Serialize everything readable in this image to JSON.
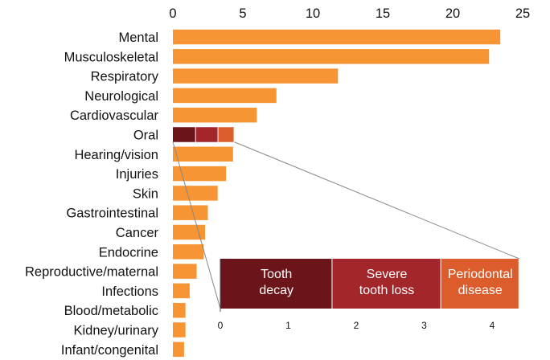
{
  "chart_data": [
    {
      "type": "bar",
      "orientation": "horizontal",
      "x_axis_position": "top",
      "xlim": [
        0,
        25
      ],
      "xticks": [
        0,
        5,
        10,
        15,
        20,
        25
      ],
      "grid": false,
      "categories": [
        "Mental",
        "Musculoskeletal",
        "Respiratory",
        "Neurological",
        "Cardiovascular",
        "Oral",
        "Hearing/vision",
        "Injuries",
        "Skin",
        "Gastrointestinal",
        "Cancer",
        "Endocrine",
        "Reproductive/maternal",
        "Infections",
        "Blood/metabolic",
        "Kidney/urinary",
        "Infant/congenital"
      ],
      "values": [
        23.4,
        22.6,
        11.8,
        7.4,
        6.0,
        4.4,
        4.3,
        3.8,
        3.2,
        2.5,
        2.3,
        2.2,
        1.7,
        1.2,
        0.9,
        0.9,
        0.8
      ],
      "bar_color": "#f79433",
      "stacked_category": "Oral",
      "stack_segments": [
        {
          "name": "Tooth decay",
          "value": 1.65,
          "color": "#6b1419"
        },
        {
          "name": "Severe tooth loss",
          "value": 1.6,
          "color": "#a3262a"
        },
        {
          "name": "Periodontal disease",
          "value": 1.15,
          "color": "#dd5c2c"
        }
      ]
    },
    {
      "type": "bar",
      "orientation": "horizontal",
      "stacked": true,
      "role": "inset zoom of Oral bar",
      "xlim": [
        0,
        4.4
      ],
      "xticks": [
        0,
        1,
        2,
        3,
        4
      ],
      "segments": [
        {
          "label_lines": [
            "Tooth",
            "decay"
          ],
          "value": 1.65,
          "color": "#6b1419"
        },
        {
          "label_lines": [
            "Severe",
            "tooth loss"
          ],
          "value": 1.6,
          "color": "#a3262a"
        },
        {
          "label_lines": [
            "Periodontal",
            "disease"
          ],
          "value": 1.15,
          "color": "#dd5c2c"
        }
      ]
    }
  ]
}
